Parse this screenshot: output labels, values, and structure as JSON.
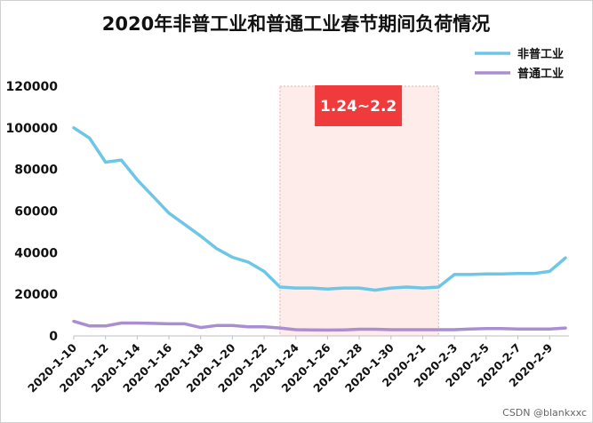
{
  "chart_data": {
    "type": "line",
    "title": "2020年非普工业和普通工业春节期间负荷情况",
    "xlabel": "",
    "ylabel": "",
    "ylim": [
      0,
      120000
    ],
    "yticks": [
      0,
      20000,
      40000,
      60000,
      80000,
      100000,
      120000
    ],
    "grid": false,
    "legend_position": "top-right",
    "x": [
      "2020-1-10",
      "2020-1-11",
      "2020-1-12",
      "2020-1-13",
      "2020-1-14",
      "2020-1-15",
      "2020-1-16",
      "2020-1-17",
      "2020-1-18",
      "2020-1-19",
      "2020-1-20",
      "2020-1-21",
      "2020-1-22",
      "2020-1-23",
      "2020-1-24",
      "2020-1-25",
      "2020-1-26",
      "2020-1-27",
      "2020-1-28",
      "2020-1-29",
      "2020-1-30",
      "2020-1-31",
      "2020-2-1",
      "2020-2-2",
      "2020-2-3",
      "2020-2-4",
      "2020-2-5",
      "2020-2-6",
      "2020-2-7",
      "2020-2-8",
      "2020-2-9",
      "2020-2-10"
    ],
    "x_tick_labels": [
      "2020-1-10",
      "2020-1-12",
      "2020-1-14",
      "2020-1-16",
      "2020-1-18",
      "2020-1-20",
      "2020-1-22",
      "2020-1-24",
      "2020-1-26",
      "2020-1-28",
      "2020-1-30",
      "2020-2-1",
      "2020-2-3",
      "2020-2-5",
      "2020-2-7",
      "2020-2-9"
    ],
    "series": [
      {
        "name": "非普工业",
        "color": "#6ec6e6",
        "values": [
          100000,
          95000,
          83500,
          84500,
          75000,
          67000,
          59000,
          53500,
          48000,
          42000,
          37800,
          35500,
          31000,
          23500,
          23000,
          23000,
          22500,
          23000,
          23000,
          22000,
          23000,
          23500,
          23000,
          23500,
          29500,
          29500,
          29800,
          29800,
          30000,
          30000,
          31000,
          37500
        ]
      },
      {
        "name": "普通工业",
        "color": "#a98fd1",
        "values": [
          7000,
          4800,
          4800,
          6200,
          6200,
          6000,
          5800,
          5800,
          4000,
          5000,
          5000,
          4400,
          4400,
          3800,
          3000,
          2900,
          2800,
          2900,
          3200,
          3200,
          3000,
          3000,
          3000,
          3000,
          3000,
          3300,
          3500,
          3500,
          3300,
          3300,
          3300,
          3800
        ]
      }
    ],
    "highlight": {
      "label": "1.24~2.2",
      "from": "2020-1-23",
      "to": "2020-2-2",
      "fill": "#fdecea",
      "badge_color": "#ef3b3b"
    }
  },
  "watermark": "CSDN @blankxxc"
}
